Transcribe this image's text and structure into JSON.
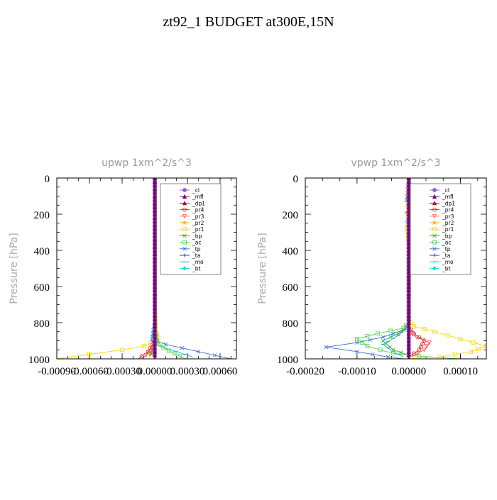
{
  "page_title": "zt92_1  BUDGET at300E,15N",
  "legend_entries": [
    "_cl",
    "_mfl",
    "_dp1",
    "_pr4",
    "_pr3",
    "_pr2",
    "_pr1",
    "_bp",
    "_ac",
    "_tp",
    "_ta",
    "_mo",
    "_bt"
  ],
  "colors": {
    "_cl": "#8e5bd0",
    "_mfl": "#7a007a",
    "_dp1": "#b0103a",
    "_pr4": "#e02020",
    "_pr3": "#ff5a5a",
    "_pr2": "#ffa500",
    "_pr1": "#ffd700",
    "_bp": "#2eaa2e",
    "_ac": "#4cd84c",
    "_tp": "#3a6fd8",
    "_ta": "#2020c0",
    "_mo": "#20a8e0",
    "_bt": "#00e0e0",
    "axis_label": "#aaaaaa"
  },
  "chart_data": [
    {
      "type": "line",
      "title": "upwp   1xm^2/s^3",
      "ylabel": "Pressure  [hPa]",
      "xlabel": "",
      "xlim": [
        -0.0009,
        0.00075
      ],
      "ylim": [
        1000,
        0
      ],
      "x_tick_labels": [
        "-0.00090",
        "-0.00060",
        "-0.00030",
        "0.00000",
        "0.00030",
        "0.00060"
      ],
      "x_tick_values": [
        -0.0009,
        -0.0006,
        -0.0003,
        0.0,
        0.0003,
        0.0006
      ],
      "y_tick_labels": [
        "0",
        "200",
        "400",
        "600",
        "800",
        "1000"
      ],
      "y_tick_values": [
        0,
        200,
        400,
        600,
        800,
        1000
      ],
      "legend_position": "top-right",
      "series": [
        {
          "name": "_pr1",
          "points": [
            [
              0,
              0
            ],
            [
              0,
              700
            ],
            [
              1e-05,
              850
            ],
            [
              3e-05,
              880
            ],
            [
              2e-05,
              900
            ],
            [
              -0.0001,
              930
            ],
            [
              -0.0003,
              950
            ],
            [
              -0.0006,
              975
            ],
            [
              -0.0009,
              1000
            ]
          ]
        },
        {
          "name": "_pr2",
          "points": [
            [
              0,
              0
            ],
            [
              0,
              800
            ],
            [
              2e-05,
              900
            ],
            [
              -2e-05,
              960
            ],
            [
              -5e-05,
              990
            ]
          ]
        },
        {
          "name": "_tp",
          "points": [
            [
              0,
              0
            ],
            [
              0,
              800
            ],
            [
              -1e-05,
              850
            ],
            [
              -2e-05,
              880
            ],
            [
              2e-05,
              900
            ],
            [
              0.0001,
              920
            ],
            [
              0.00025,
              940
            ],
            [
              0.0004,
              960
            ],
            [
              0.00055,
              980
            ],
            [
              0.0007,
              1000
            ]
          ]
        },
        {
          "name": "_mo",
          "points": [
            [
              0,
              0
            ],
            [
              0,
              800
            ],
            [
              -2e-05,
              850
            ],
            [
              -3e-05,
              900
            ],
            [
              5e-05,
              930
            ],
            [
              0.0002,
              960
            ],
            [
              0.00035,
              990
            ]
          ]
        },
        {
          "name": "_ac",
          "points": [
            [
              0,
              0
            ],
            [
              0,
              850
            ],
            [
              2e-05,
              900
            ],
            [
              8e-05,
              940
            ],
            [
              0.00018,
              970
            ],
            [
              0.00028,
              1000
            ]
          ]
        },
        {
          "name": "_bp",
          "points": [
            [
              0,
              0
            ],
            [
              0,
              900
            ],
            [
              -2e-05,
              950
            ],
            [
              -5e-05,
              985
            ]
          ]
        },
        {
          "name": "_pr4",
          "points": [
            [
              0,
              0
            ],
            [
              0,
              880
            ],
            [
              -2e-05,
              920
            ],
            [
              -6e-05,
              960
            ],
            [
              -0.00012,
              985
            ],
            [
              -0.00015,
              1000
            ]
          ]
        },
        {
          "name": "_pr3",
          "points": [
            [
              0,
              0
            ],
            [
              0,
              900
            ],
            [
              -3e-05,
              940
            ],
            [
              -8e-05,
              980
            ],
            [
              -0.00012,
              1000
            ]
          ]
        },
        {
          "name": "_ta",
          "points": [
            [
              0,
              0
            ],
            [
              0,
              1000
            ]
          ]
        },
        {
          "name": "_dp1",
          "points": [
            [
              0,
              0
            ],
            [
              0,
              1000
            ]
          ]
        },
        {
          "name": "_cl",
          "points": [
            [
              0,
              0
            ],
            [
              0,
              1000
            ]
          ]
        },
        {
          "name": "_mfl",
          "points": [
            [
              0,
              0
            ],
            [
              0,
              1000
            ]
          ]
        }
      ]
    },
    {
      "type": "line",
      "title": "vpwp   1xm^2/s^3",
      "ylabel": "Pressure  [hPa]",
      "xlabel": "",
      "xlim": [
        -0.0002,
        0.00015
      ],
      "ylim": [
        1000,
        0
      ],
      "x_tick_labels": [
        "-0.00020",
        "-0.00010",
        "0.00000",
        "0.00010"
      ],
      "x_tick_values": [
        -0.0002,
        -0.0001,
        0.0,
        0.0001
      ],
      "y_tick_labels": [
        "0",
        "200",
        "400",
        "600",
        "800",
        "1000"
      ],
      "y_tick_values": [
        0,
        200,
        400,
        600,
        800,
        1000
      ],
      "legend_position": "top-right",
      "series": [
        {
          "name": "_pr1",
          "points": [
            [
              0,
              0
            ],
            [
              4e-06,
              130
            ],
            [
              -4e-06,
              150
            ],
            [
              3e-06,
              180
            ],
            [
              0,
              200
            ],
            [
              4e-06,
              250
            ],
            [
              -3e-06,
              280
            ],
            [
              0,
              350
            ],
            [
              0,
              780
            ],
            [
              1e-05,
              820
            ],
            [
              5e-05,
              850
            ],
            [
              0.0001,
              890
            ],
            [
              0.00015,
              930
            ],
            [
              0.00012,
              960
            ],
            [
              6e-05,
              990
            ],
            [
              -1e-05,
              1000
            ]
          ]
        },
        {
          "name": "_pr2",
          "points": [
            [
              0,
              0
            ],
            [
              -4e-06,
              120
            ],
            [
              4e-06,
              150
            ],
            [
              -5e-06,
              190
            ],
            [
              0,
              220
            ],
            [
              -3e-06,
              260
            ],
            [
              0,
              300
            ],
            [
              0,
              1000
            ]
          ]
        },
        {
          "name": "_tp",
          "points": [
            [
              0,
              0
            ],
            [
              0,
              800
            ],
            [
              -1e-05,
              840
            ],
            [
              -5e-05,
              880
            ],
            [
              -0.0001,
              910
            ],
            [
              -0.00016,
              935
            ],
            [
              -0.0001,
              960
            ],
            [
              -4e-05,
              990
            ],
            [
              -1e-05,
              1000
            ]
          ]
        },
        {
          "name": "_mo",
          "points": [
            [
              0,
              0
            ],
            [
              -5e-06,
              130
            ],
            [
              3e-06,
              160
            ],
            [
              -4e-06,
              240
            ],
            [
              4e-06,
              270
            ],
            [
              0,
              300
            ],
            [
              0,
              820
            ],
            [
              -2e-05,
              870
            ],
            [
              -5e-05,
              920
            ],
            [
              -3e-05,
              960
            ],
            [
              -1e-05,
              990
            ]
          ]
        },
        {
          "name": "_ac",
          "points": [
            [
              0,
              0
            ],
            [
              0,
              800
            ],
            [
              -1e-05,
              830
            ],
            [
              -6e-05,
              860
            ],
            [
              -0.0001,
              890
            ],
            [
              -8e-05,
              930
            ],
            [
              -3e-05,
              970
            ],
            [
              2e-05,
              985
            ],
            [
              0.0001,
              1000
            ]
          ]
        },
        {
          "name": "_bp",
          "points": [
            [
              0,
              0
            ],
            [
              0,
              820
            ],
            [
              -2e-05,
              860
            ],
            [
              -5e-05,
              900
            ],
            [
              -3e-05,
              950
            ],
            [
              0,
              980
            ]
          ]
        },
        {
          "name": "_pr4",
          "points": [
            [
              0,
              0
            ],
            [
              0,
              820
            ],
            [
              1e-05,
              860
            ],
            [
              3e-05,
              900
            ],
            [
              2e-05,
              950
            ],
            [
              0,
              990
            ]
          ]
        },
        {
          "name": "_pr3",
          "points": [
            [
              0,
              0
            ],
            [
              0,
              850
            ],
            [
              1.5e-05,
              880
            ],
            [
              4e-05,
              910
            ],
            [
              3e-05,
              950
            ],
            [
              5e-06,
              990
            ]
          ]
        },
        {
          "name": "_ta",
          "points": [
            [
              0,
              0
            ],
            [
              0,
              1000
            ]
          ]
        },
        {
          "name": "_dp1",
          "points": [
            [
              0,
              0
            ],
            [
              0,
              1000
            ]
          ]
        },
        {
          "name": "_cl",
          "points": [
            [
              0,
              0
            ],
            [
              0,
              1000
            ]
          ]
        },
        {
          "name": "_mfl",
          "points": [
            [
              0,
              0
            ],
            [
              0,
              1000
            ]
          ]
        }
      ]
    }
  ]
}
